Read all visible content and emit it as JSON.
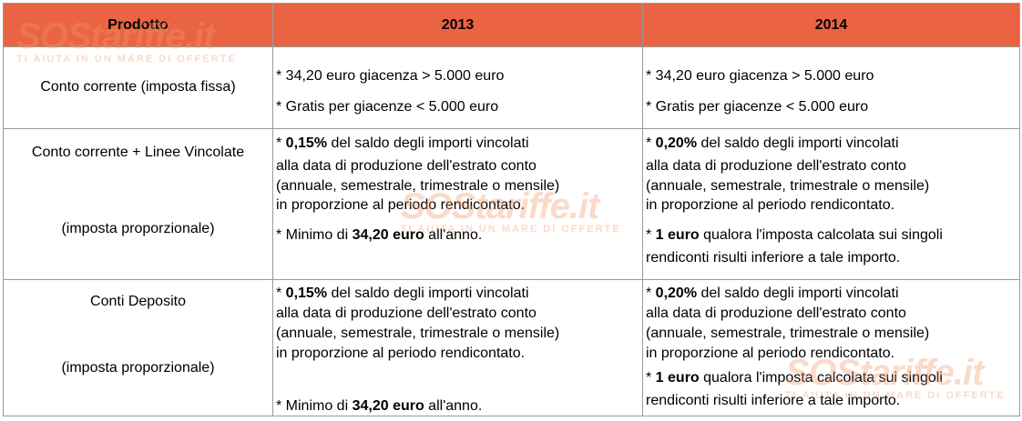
{
  "header": {
    "col_product": "Prodotto",
    "col_2013": "2013",
    "col_2014": "2014"
  },
  "watermark": {
    "brand": "SOStariffe.it",
    "tagline": "TI AIUTA IN UN MARE DI OFFERTE",
    "color": "#f0966e"
  },
  "rows": [
    {
      "product": [
        "Conto corrente (imposta fissa)"
      ],
      "c2013": [
        {
          "text": "* 34,20 euro giacenza > 5.000 euro"
        },
        {
          "text": "* Gratis per giacenze < 5.000 euro"
        }
      ],
      "c2014": [
        {
          "text": "* 34,20 euro giacenza > 5.000 euro"
        },
        {
          "text": "* Gratis per giacenze < 5.000 euro"
        }
      ]
    },
    {
      "product": [
        "Conto corrente + Linee Vincolate",
        "(imposta proporzionale)"
      ],
      "c2013": [
        {
          "pre": "* ",
          "bold": "0,15%",
          "post": " del saldo degli importi vincolati"
        },
        {
          "text": "alla data di produzione dell'estrato conto"
        },
        {
          "text": "(annuale, semestrale, trimestrale o mensile)"
        },
        {
          "text": "in proporzione al periodo rendicontato."
        },
        {
          "pre": "* Minimo di ",
          "bold": "34,20 euro",
          "post": " all'anno."
        }
      ],
      "c2014": [
        {
          "pre": "* ",
          "bold": "0,20%",
          "post": " del saldo degli importi vincolati"
        },
        {
          "text": "alla data di produzione dell'estrato conto"
        },
        {
          "text": "(annuale, semestrale, trimestrale o mensile)"
        },
        {
          "text": "in proporzione al periodo rendicontato."
        },
        {
          "pre": "* ",
          "bold": "1 euro",
          "post": " qualora l'imposta calcolata sui singoli"
        },
        {
          "text": "rendiconti risulti inferiore a tale importo."
        }
      ]
    },
    {
      "product": [
        "Conti Deposito",
        "(imposta proporzionale)"
      ],
      "c2013": [
        {
          "pre": "* ",
          "bold": "0,15%",
          "post": " del saldo degli importi vincolati"
        },
        {
          "text": "alla data di produzione dell'estrato conto"
        },
        {
          "text": "(annuale, semestrale, trimestrale o mensile)"
        },
        {
          "text": "in proporzione al periodo rendicontato."
        },
        {
          "pre": "* Minimo di ",
          "bold": "34,20 euro",
          "post": " all'anno."
        }
      ],
      "c2014": [
        {
          "pre": "* ",
          "bold": "0,20%",
          "post": " del saldo degli importi vincolati"
        },
        {
          "text": "alla data di produzione dell'estrato conto"
        },
        {
          "text": "(annuale, semestrale, trimestrale o mensile)"
        },
        {
          "text": "in proporzione al periodo rendicontato."
        },
        {
          "pre": "* ",
          "bold": "1 euro",
          "post": " qualora l'imposta calcolata sui singoli"
        },
        {
          "text": "rendiconti risulti inferiore a tale importo."
        }
      ]
    }
  ]
}
